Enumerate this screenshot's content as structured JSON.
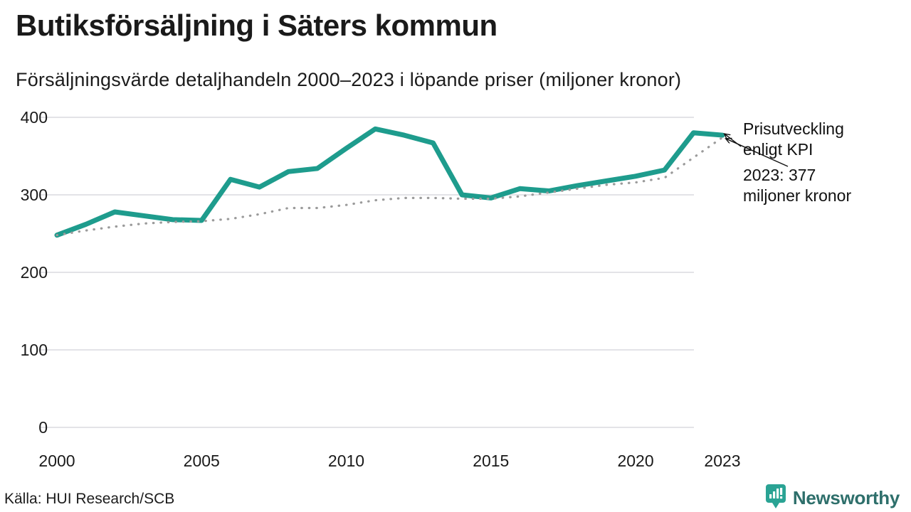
{
  "header": {
    "title": "Butiksförsäljning i Säters kommun",
    "subtitle": "Försäljningsvärde detaljhandeln 2000–2023 i löpande priser (miljoner kronor)"
  },
  "footer": {
    "source": "Källa: HUI Research/SCB",
    "brand": "Newsworthy"
  },
  "colors": {
    "sales_line": "#1E9C8D",
    "kpi_dots": "#9B9B9B",
    "gridline": "#E3E3E7",
    "tick_text": "#1a1a1a",
    "annotation_arrow": "#111111",
    "logo_bubble": "#2AA394",
    "logo_text": "#2E6F6B",
    "background": "#FFFFFF"
  },
  "chart_data": {
    "type": "line",
    "title": "Butiksförsäljning i Säters kommun",
    "subtitle": "Försäljningsvärde detaljhandeln 2000–2023 i löpande priser (miljoner kronor)",
    "x": [
      2000,
      2001,
      2002,
      2003,
      2004,
      2005,
      2006,
      2007,
      2008,
      2009,
      2010,
      2011,
      2012,
      2013,
      2014,
      2015,
      2016,
      2017,
      2018,
      2019,
      2020,
      2021,
      2022,
      2023
    ],
    "series": [
      {
        "name": "Försäljningsvärde i löpande priser",
        "style": "solid",
        "color": "#1E9C8D",
        "values": [
          248,
          262,
          278,
          273,
          268,
          267,
          320,
          310,
          330,
          334,
          360,
          385,
          377,
          367,
          300,
          296,
          308,
          305,
          312,
          318,
          324,
          332,
          380,
          377
        ]
      },
      {
        "name": "Prisutveckling enligt KPI",
        "style": "dotted",
        "color": "#9B9B9B",
        "values": [
          248,
          254,
          259,
          263,
          265,
          266,
          269,
          275,
          283,
          283,
          287,
          293,
          296,
          296,
          295,
          295,
          298,
          303,
          308,
          313,
          316,
          322,
          348,
          374
        ]
      }
    ],
    "yticks": [
      0,
      100,
      200,
      300,
      400
    ],
    "xticks": [
      2000,
      2005,
      2010,
      2015,
      2020,
      2023
    ],
    "ylim": [
      0,
      420
    ],
    "grid": "horizontal-only",
    "legend": "none",
    "annotations": [
      {
        "lines": [
          "Prisutveckling",
          "enligt KPI"
        ],
        "target_series": "Prisutveckling enligt KPI",
        "target_year": 2023
      },
      {
        "lines": [
          "2023: 377",
          "miljoner kronor"
        ],
        "target_series": "Försäljningsvärde i löpande priser",
        "target_year": 2023
      }
    ]
  }
}
